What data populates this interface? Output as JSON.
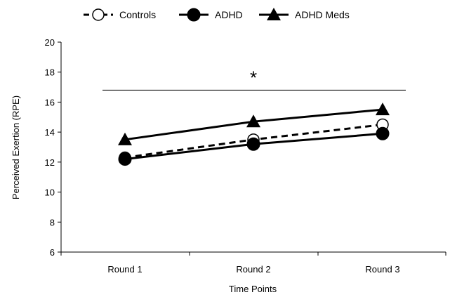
{
  "chart_data": {
    "type": "line",
    "title": "",
    "xlabel": "Time Points",
    "ylabel": "Perceived Exertion (RPE)",
    "categories": [
      "Round 1",
      "Round 2",
      "Round 3"
    ],
    "ylim": [
      6,
      20
    ],
    "yticks": [
      6,
      8,
      10,
      12,
      14,
      16,
      18,
      20
    ],
    "grid": false,
    "legend_position": "top",
    "series": [
      {
        "name": "Controls",
        "values": [
          12.3,
          13.5,
          14.5
        ],
        "marker": "open-circle",
        "line_style": "dashed",
        "color": "#000000"
      },
      {
        "name": "ADHD",
        "values": [
          12.2,
          13.2,
          13.9
        ],
        "marker": "filled-circle",
        "line_style": "solid",
        "color": "#000000"
      },
      {
        "name": "ADHD Meds",
        "values": [
          13.5,
          14.7,
          15.5
        ],
        "marker": "filled-triangle",
        "line_style": "solid",
        "color": "#000000"
      }
    ],
    "annotations": [
      {
        "text": "*",
        "y": 18,
        "kind": "significance-mark"
      }
    ],
    "reference_lines": [
      {
        "y": 16.8,
        "from_category": "Round 1",
        "to_category": "Round 3",
        "kind": "significance-bar"
      }
    ]
  }
}
